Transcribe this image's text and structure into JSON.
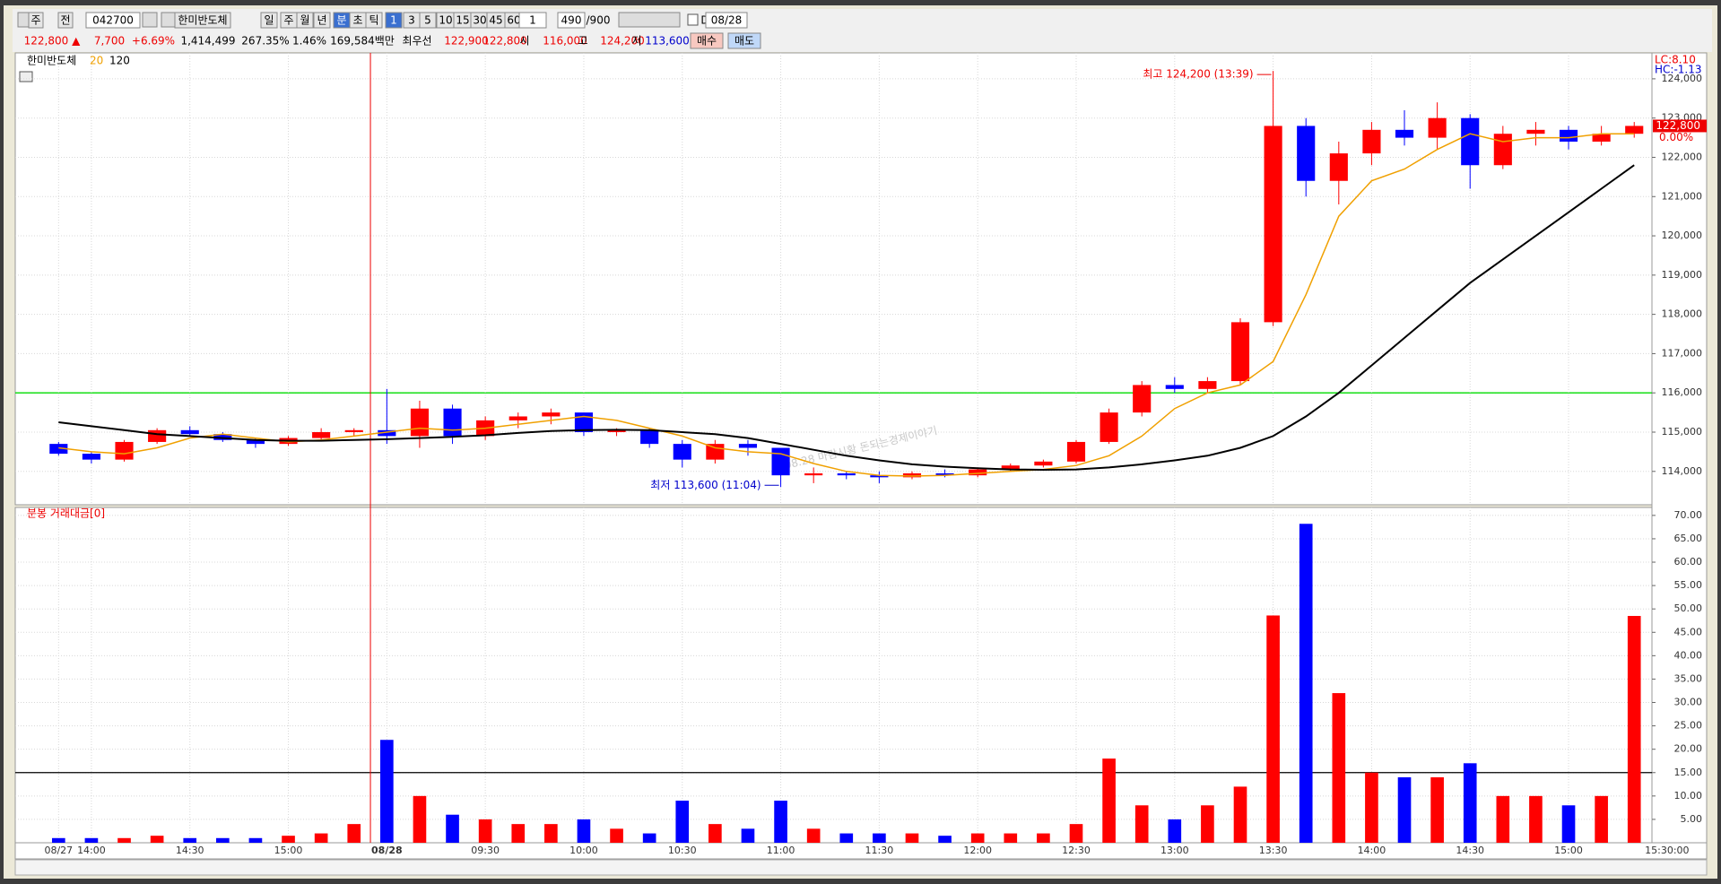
{
  "toolbar": {
    "row1": [
      "주",
      "전",
      "042700",
      "한미반도체",
      "일",
      "주",
      "월",
      "년",
      "분",
      "초",
      "틱",
      "1",
      "3",
      "5",
      "10",
      "15",
      "30",
      "45",
      "60",
      "1",
      "490",
      "/900",
      "D",
      "08/28"
    ],
    "row2": [
      "122,800 ▲",
      "7,700",
      "+6.69%",
      "1,414,499",
      "267.35%",
      "1.46%",
      "169,584백만",
      "최우선",
      "122,900",
      "122,800",
      "시",
      "116,000",
      "고",
      "124,200",
      "저",
      "113,600",
      "매수",
      "매도"
    ]
  },
  "chart_data": [
    {
      "type": "candlestick",
      "title": "한미반도체",
      "up_color": "#ff0000",
      "down_color": "#0000ff",
      "open": [
        114700,
        114450,
        114300,
        114750,
        115050,
        114950,
        114800,
        114700,
        114850,
        115000,
        115050,
        114900,
        115600,
        114900,
        115300,
        115400,
        115500,
        115000,
        115050,
        114700,
        114300,
        114700,
        114600,
        113900,
        113950,
        113900,
        113850,
        113950,
        113900,
        114050,
        114150,
        114250,
        114750,
        115500,
        116200,
        116100,
        116300,
        117800,
        122800,
        121400,
        122100,
        122700,
        122500,
        123000,
        121800,
        122600,
        122700,
        122400,
        122600
      ],
      "high": [
        114750,
        114500,
        114800,
        115100,
        115150,
        115000,
        114850,
        114900,
        115100,
        115100,
        116100,
        115800,
        115700,
        115400,
        115500,
        115600,
        115500,
        115100,
        115100,
        114800,
        114800,
        114800,
        114600,
        114100,
        114000,
        114000,
        114000,
        114050,
        114100,
        114200,
        114300,
        114800,
        115600,
        116300,
        116400,
        116400,
        117900,
        124200,
        123000,
        122400,
        122900,
        123200,
        123400,
        123100,
        122800,
        122900,
        122800,
        122800,
        122900
      ],
      "low": [
        114400,
        114200,
        114250,
        114700,
        114900,
        114750,
        114600,
        114650,
        114800,
        114900,
        114700,
        114600,
        114700,
        114800,
        115100,
        115200,
        114900,
        114900,
        114600,
        114100,
        114200,
        114400,
        113600,
        113700,
        113800,
        113700,
        113800,
        113850,
        113850,
        114000,
        114100,
        114200,
        114700,
        115400,
        116000,
        116000,
        116200,
        117700,
        121000,
        120800,
        121800,
        122300,
        122200,
        121200,
        121700,
        122300,
        122200,
        122300,
        122500
      ],
      "close": [
        114450,
        114300,
        114750,
        115050,
        114950,
        114800,
        114700,
        114850,
        115000,
        115050,
        114900,
        115600,
        114900,
        115300,
        115400,
        115500,
        115000,
        115050,
        114700,
        114300,
        114700,
        114600,
        113900,
        113950,
        113900,
        113850,
        113950,
        113900,
        114050,
        114150,
        114250,
        114750,
        115500,
        116200,
        116100,
        116300,
        117800,
        122800,
        121400,
        122100,
        122700,
        122500,
        123000,
        121800,
        122600,
        122700,
        122400,
        122600,
        122800
      ],
      "series": [
        {
          "name": "20",
          "color": "#f0a000",
          "values": [
            114600,
            114500,
            114450,
            114600,
            114850,
            114950,
            114850,
            114750,
            114800,
            114900,
            115000,
            115100,
            115050,
            115100,
            115200,
            115300,
            115400,
            115300,
            115100,
            114900,
            114600,
            114500,
            114450,
            114200,
            114000,
            113900,
            113880,
            113900,
            113950,
            114000,
            114050,
            114150,
            114400,
            114900,
            115600,
            116000,
            116200,
            116800,
            118500,
            120500,
            121400,
            121700,
            122200,
            122600,
            122400,
            122500,
            122500,
            122600,
            122600
          ]
        },
        {
          "name": "120",
          "color": "#000000",
          "values": [
            115250,
            115150,
            115050,
            114950,
            114900,
            114850,
            114800,
            114780,
            114780,
            114800,
            114820,
            114850,
            114880,
            114920,
            114980,
            115030,
            115050,
            115060,
            115050,
            115000,
            114950,
            114850,
            114700,
            114550,
            114400,
            114280,
            114180,
            114120,
            114080,
            114050,
            114040,
            114050,
            114100,
            114180,
            114280,
            114400,
            114600,
            114900,
            115400,
            116000,
            116700,
            117400,
            118100,
            118800,
            119400,
            120000,
            120600,
            121200,
            121800
          ]
        }
      ],
      "hlines": [
        {
          "value": 116000,
          "color": "#00dd00"
        }
      ],
      "annotations": [
        "최고 124,200 (13:39)",
        "최저 113,600 (11:04)"
      ],
      "watermark": "08.28 마감시황 돈되는경제이야기",
      "corner_labels": [
        "LC:8.10",
        "HC:-1.13"
      ],
      "last_label": "122,800",
      "change_label": "0.00%",
      "xlim": [
        -1.32,
        48.54
      ],
      "ylim": [
        113150,
        124660
      ],
      "yticks": [
        {
          "value": 114000,
          "label": "114,000"
        },
        {
          "value": 115000,
          "label": "115,000"
        },
        {
          "value": 116000,
          "label": "116,000"
        },
        {
          "value": 117000,
          "label": "117,000"
        },
        {
          "value": 118000,
          "label": "118,000"
        },
        {
          "value": 119000,
          "label": "119,000"
        },
        {
          "value": 120000,
          "label": "120,000"
        },
        {
          "value": 121000,
          "label": "121,000"
        },
        {
          "value": 122000,
          "label": "122,000"
        },
        {
          "value": 123000,
          "label": "123,000"
        },
        {
          "value": 124000,
          "label": "124,000"
        }
      ],
      "xticks": [
        {
          "value": 0,
          "label": "08/27"
        },
        {
          "value": 1,
          "label": "14:00"
        },
        {
          "value": 4,
          "label": "14:30"
        },
        {
          "value": 7,
          "label": "15:00"
        },
        {
          "value": 10,
          "label": "08/28"
        },
        {
          "value": 13,
          "label": "09:30"
        },
        {
          "value": 16,
          "label": "10:00"
        },
        {
          "value": 19,
          "label": "10:30"
        },
        {
          "value": 22,
          "label": "11:00"
        },
        {
          "value": 25,
          "label": "11:30"
        },
        {
          "value": 28,
          "label": "12:00"
        },
        {
          "value": 31,
          "label": "12:30"
        },
        {
          "value": 34,
          "label": "13:00"
        },
        {
          "value": 37,
          "label": "13:30"
        },
        {
          "value": 40,
          "label": "14:00"
        },
        {
          "value": 43,
          "label": "14:30"
        },
        {
          "value": 46,
          "label": "15:00"
        },
        {
          "value": 49,
          "label": "15:30:00"
        }
      ]
    },
    {
      "type": "bar",
      "title": "분봉 거래대금[0]",
      "values": [
        1,
        1,
        1,
        1.5,
        1,
        1,
        1,
        1.5,
        2,
        4,
        22,
        10,
        6,
        5,
        4,
        4,
        5,
        3,
        2,
        9,
        4,
        3,
        9,
        3,
        2,
        2,
        2,
        1.5,
        2,
        2,
        2,
        4,
        18,
        8,
        5,
        8,
        12,
        48.6,
        68.2,
        32,
        15,
        14,
        14,
        17,
        10,
        10,
        8,
        10,
        48.5
      ],
      "hlines": [
        {
          "value": 15,
          "color": "#000000"
        }
      ],
      "xlim": [
        -1.32,
        48.54
      ],
      "ylim": [
        0,
        71.7
      ],
      "yticks": [
        {
          "value": 5,
          "label": "5.00"
        },
        {
          "value": 10,
          "label": "10.00"
        },
        {
          "value": 15,
          "label": "15.00"
        },
        {
          "value": 20,
          "label": "20.00"
        },
        {
          "value": 25,
          "label": "25.00"
        },
        {
          "value": 30,
          "label": "30.00"
        },
        {
          "value": 35,
          "label": "35.00"
        },
        {
          "value": 40,
          "label": "40.00"
        },
        {
          "value": 45,
          "label": "45.00"
        },
        {
          "value": 50,
          "label": "50.00"
        },
        {
          "value": 55,
          "label": "55.00"
        },
        {
          "value": 60,
          "label": "60.00"
        },
        {
          "value": 65,
          "label": "65.00"
        },
        {
          "value": 70,
          "label": "70.00"
        }
      ]
    }
  ]
}
